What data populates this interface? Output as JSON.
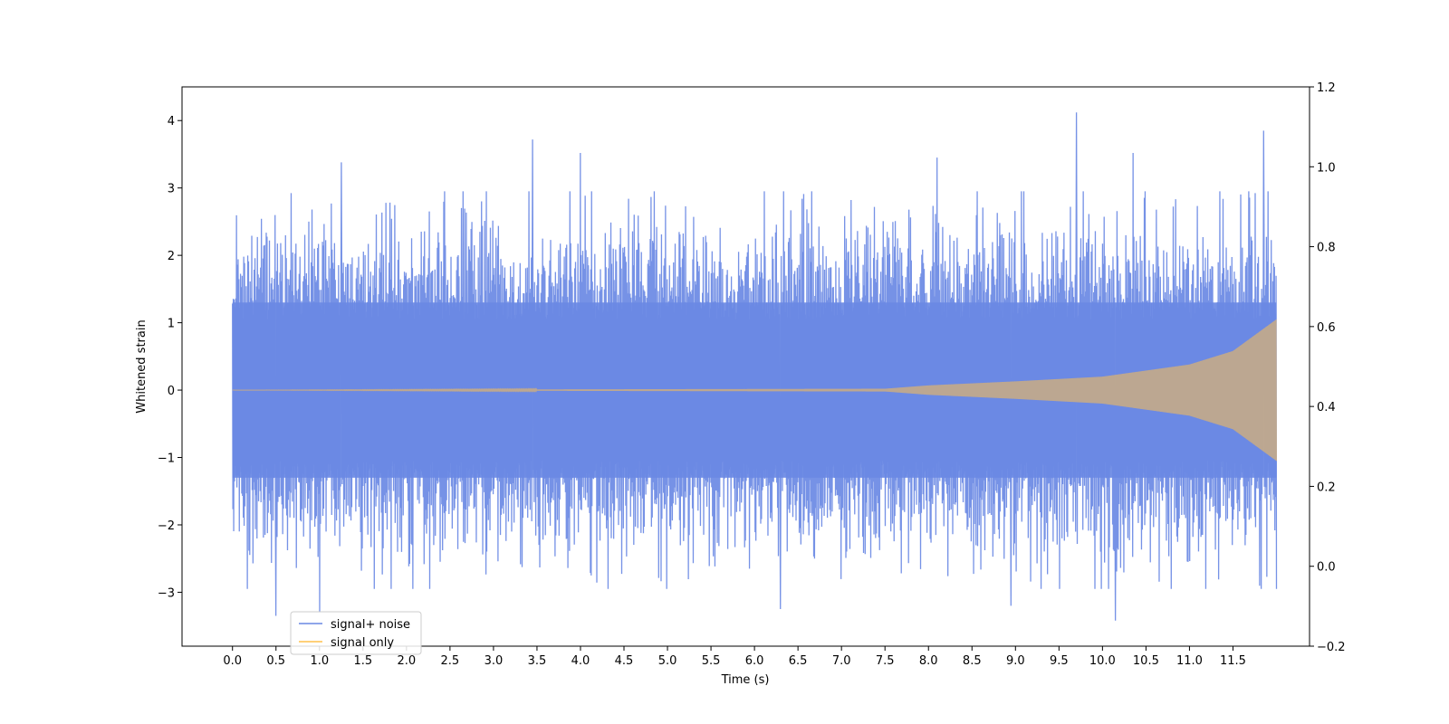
{
  "chart_data": {
    "type": "line",
    "xlabel": "Time (s)",
    "ylabel": "Whitened strain",
    "xlim": [
      -0.58,
      12.38
    ],
    "ylim": [
      -3.8,
      4.5
    ],
    "y2lim": [
      -0.2,
      1.2
    ],
    "x_ticks": [
      0.0,
      0.5,
      1.0,
      1.5,
      2.0,
      2.5,
      3.0,
      3.5,
      4.0,
      4.5,
      5.0,
      5.5,
      6.0,
      6.5,
      7.0,
      7.5,
      8.0,
      8.5,
      9.0,
      9.5,
      10.0,
      10.5,
      11.0,
      11.5
    ],
    "x_tick_labels": [
      "0.0",
      "0.5",
      "1.0",
      "1.5",
      "2.0",
      "2.5",
      "3.0",
      "3.5",
      "4.0",
      "4.5",
      "5.0",
      "5.5",
      "6.0",
      "6.5",
      "7.0",
      "7.5",
      "8.0",
      "8.5",
      "9.0",
      "9.5",
      "10.0",
      "10.5",
      "11.0",
      "11.5"
    ],
    "y_ticks": [
      -3,
      -2,
      -1,
      0,
      1,
      2,
      3,
      4
    ],
    "y_tick_labels": [
      "−3",
      "−2",
      "−1",
      "0",
      "1",
      "2",
      "3",
      "4"
    ],
    "y2_ticks": [
      -0.2,
      0.0,
      0.2,
      0.4,
      0.6,
      0.8,
      1.0,
      1.2
    ],
    "y2_tick_labels": [
      "−0.2",
      "0.0",
      "0.2",
      "0.4",
      "0.6",
      "0.8",
      "1.0",
      "1.2"
    ],
    "legend_position": "lower-left",
    "grid": false,
    "series": [
      {
        "name": "signal+ noise",
        "color": "#6a89e4",
        "x_range": [
          0.0,
          12.0
        ],
        "typical_band": [
          -1.3,
          1.3
        ],
        "peaks": [
          {
            "x": 0.5,
            "y": -3.35
          },
          {
            "x": 1.0,
            "y": -3.3
          },
          {
            "x": 1.25,
            "y": 3.38
          },
          {
            "x": 3.45,
            "y": 3.72
          },
          {
            "x": 4.0,
            "y": 3.52
          },
          {
            "x": 6.3,
            "y": -3.25
          },
          {
            "x": 8.1,
            "y": 3.45
          },
          {
            "x": 8.95,
            "y": -3.2
          },
          {
            "x": 9.7,
            "y": 4.12
          },
          {
            "x": 10.15,
            "y": -3.42
          },
          {
            "x": 10.35,
            "y": 3.52
          },
          {
            "x": 11.85,
            "y": 3.85
          }
        ]
      },
      {
        "name": "signal only",
        "color": "#ffc04d",
        "x_range": [
          0.0,
          12.0
        ],
        "envelope": [
          {
            "x": 0.0,
            "y": 0.0
          },
          {
            "x": 7.5,
            "y": 0.02
          },
          {
            "x": 8.0,
            "y": 0.07
          },
          {
            "x": 9.0,
            "y": 0.13
          },
          {
            "x": 10.0,
            "y": 0.2
          },
          {
            "x": 11.0,
            "y": 0.38
          },
          {
            "x": 11.5,
            "y": 0.58
          },
          {
            "x": 12.0,
            "y": 1.05
          }
        ]
      }
    ]
  }
}
